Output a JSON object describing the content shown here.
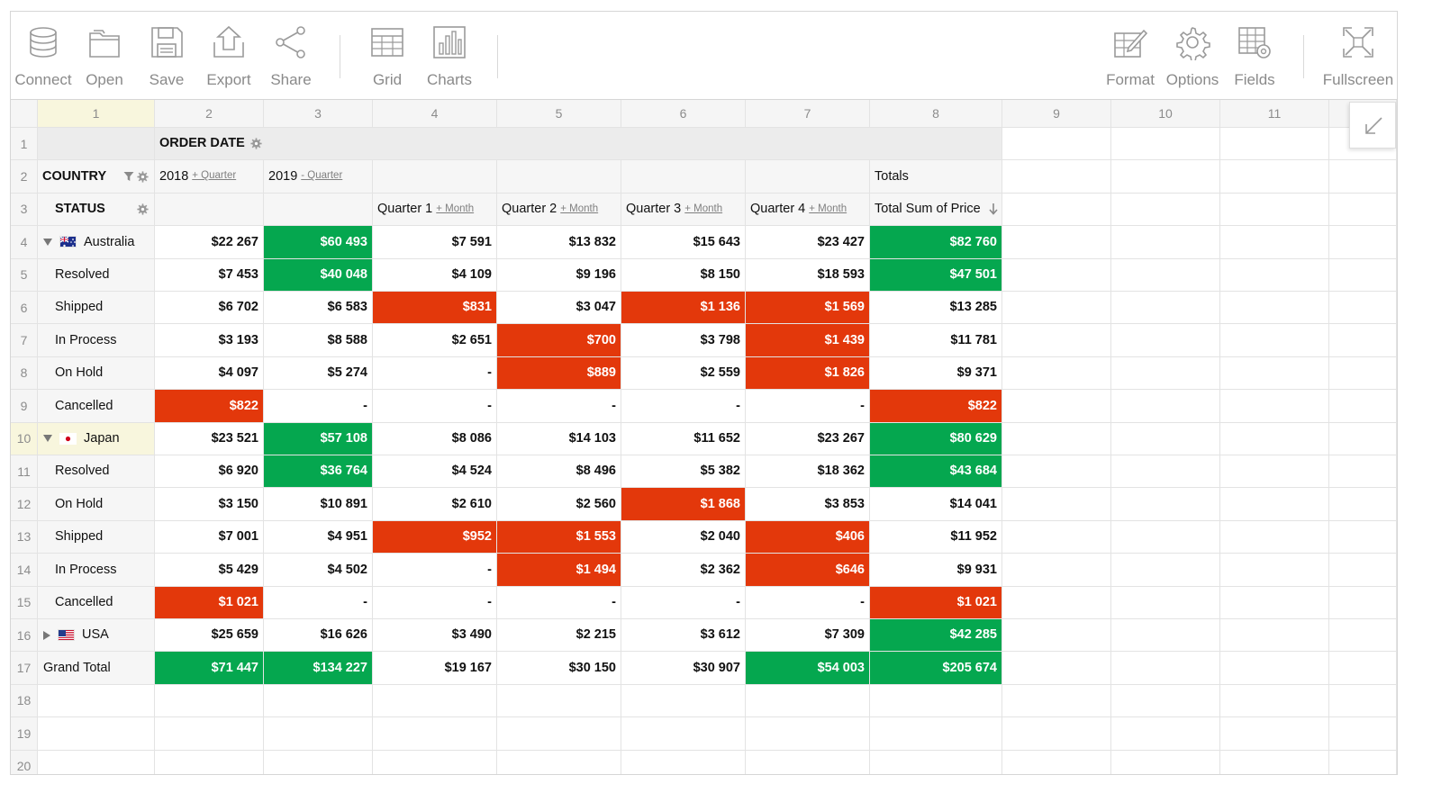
{
  "toolbar": {
    "left": [
      {
        "id": "connect",
        "label": "Connect",
        "icon": "database-icon"
      },
      {
        "id": "open",
        "label": "Open",
        "icon": "folder-icon"
      },
      {
        "id": "save",
        "label": "Save",
        "icon": "floppy-disk-icon"
      },
      {
        "id": "export",
        "label": "Export",
        "icon": "export-icon"
      },
      {
        "id": "share",
        "label": "Share",
        "icon": "share-icon"
      },
      {
        "id": "grid",
        "label": "Grid",
        "icon": "grid-icon"
      },
      {
        "id": "charts",
        "label": "Charts",
        "icon": "bar-chart-icon"
      }
    ],
    "right": [
      {
        "id": "format",
        "label": "Format",
        "icon": "format-icon"
      },
      {
        "id": "options",
        "label": "Options",
        "icon": "gear-icon"
      },
      {
        "id": "fields",
        "label": "Fields",
        "icon": "fields-icon"
      },
      {
        "id": "fullscreen",
        "label": "Fullscreen",
        "icon": "fullscreen-icon"
      }
    ]
  },
  "colors": {
    "high": "#05a74f",
    "low": "#e3380b",
    "selected": "#f8f6dd"
  },
  "column_headers": [
    "1",
    "2",
    "3",
    "4",
    "5",
    "6",
    "7",
    "8",
    "9",
    "10",
    "11"
  ],
  "row_headers": [
    "1",
    "2",
    "3",
    "4",
    "5",
    "6",
    "7",
    "8",
    "9",
    "10",
    "11",
    "12",
    "13",
    "14",
    "15",
    "16",
    "17",
    "18",
    "19",
    "20"
  ],
  "header": {
    "order_date": "ORDER DATE",
    "country": "COUNTRY",
    "status": "STATUS",
    "year_2018": "2018",
    "year_2019": "2019",
    "plus_quarter": "+ Quarter",
    "minus_quarter": "- Quarter",
    "totals": "Totals",
    "quarters": [
      {
        "label": "Quarter 1",
        "sub": "+ Month"
      },
      {
        "label": "Quarter 2",
        "sub": "+ Month"
      },
      {
        "label": "Quarter 3",
        "sub": "+ Month"
      },
      {
        "label": "Quarter 4",
        "sub": "+ Month"
      }
    ],
    "total_sum": "Total Sum of Price"
  },
  "rows": [
    {
      "label": "Australia",
      "type": "country",
      "flag": "au",
      "expanded": true,
      "cells": [
        {
          "v": "$22 267"
        },
        {
          "v": "$60 493",
          "c": "g"
        },
        {
          "v": "$7 591"
        },
        {
          "v": "$13 832"
        },
        {
          "v": "$15 643"
        },
        {
          "v": "$23 427"
        },
        {
          "v": "$82 760",
          "c": "g"
        }
      ]
    },
    {
      "label": "Resolved",
      "type": "status",
      "cells": [
        {
          "v": "$7 453"
        },
        {
          "v": "$40 048",
          "c": "g"
        },
        {
          "v": "$4 109"
        },
        {
          "v": "$9 196"
        },
        {
          "v": "$8 150"
        },
        {
          "v": "$18 593"
        },
        {
          "v": "$47 501",
          "c": "g"
        }
      ]
    },
    {
      "label": "Shipped",
      "type": "status",
      "cells": [
        {
          "v": "$6 702"
        },
        {
          "v": "$6 583"
        },
        {
          "v": "$831",
          "c": "r"
        },
        {
          "v": "$3 047"
        },
        {
          "v": "$1 136",
          "c": "r"
        },
        {
          "v": "$1 569",
          "c": "r"
        },
        {
          "v": "$13 285"
        }
      ]
    },
    {
      "label": "In Process",
      "type": "status",
      "cells": [
        {
          "v": "$3 193"
        },
        {
          "v": "$8 588"
        },
        {
          "v": "$2 651"
        },
        {
          "v": "$700",
          "c": "r"
        },
        {
          "v": "$3 798"
        },
        {
          "v": "$1 439",
          "c": "r"
        },
        {
          "v": "$11 781"
        }
      ]
    },
    {
      "label": "On Hold",
      "type": "status",
      "cells": [
        {
          "v": "$4 097"
        },
        {
          "v": "$5 274"
        },
        {
          "v": "-"
        },
        {
          "v": "$889",
          "c": "r"
        },
        {
          "v": "$2 559"
        },
        {
          "v": "$1 826",
          "c": "r"
        },
        {
          "v": "$9 371"
        }
      ]
    },
    {
      "label": "Cancelled",
      "type": "status",
      "cells": [
        {
          "v": "$822",
          "c": "r"
        },
        {
          "v": "-"
        },
        {
          "v": "-"
        },
        {
          "v": "-"
        },
        {
          "v": "-"
        },
        {
          "v": "-"
        },
        {
          "v": "$822",
          "c": "r"
        }
      ]
    },
    {
      "label": "Japan",
      "type": "country",
      "flag": "jp",
      "expanded": true,
      "selected": true,
      "cells": [
        {
          "v": "$23 521"
        },
        {
          "v": "$57 108",
          "c": "g"
        },
        {
          "v": "$8 086"
        },
        {
          "v": "$14 103"
        },
        {
          "v": "$11 652"
        },
        {
          "v": "$23 267"
        },
        {
          "v": "$80 629",
          "c": "g"
        }
      ]
    },
    {
      "label": "Resolved",
      "type": "status",
      "cells": [
        {
          "v": "$6 920"
        },
        {
          "v": "$36 764",
          "c": "g"
        },
        {
          "v": "$4 524"
        },
        {
          "v": "$8 496"
        },
        {
          "v": "$5 382"
        },
        {
          "v": "$18 362"
        },
        {
          "v": "$43 684",
          "c": "g"
        }
      ]
    },
    {
      "label": "On Hold",
      "type": "status",
      "cells": [
        {
          "v": "$3 150"
        },
        {
          "v": "$10 891"
        },
        {
          "v": "$2 610"
        },
        {
          "v": "$2 560"
        },
        {
          "v": "$1 868",
          "c": "r"
        },
        {
          "v": "$3 853"
        },
        {
          "v": "$14 041"
        }
      ]
    },
    {
      "label": "Shipped",
      "type": "status",
      "cells": [
        {
          "v": "$7 001"
        },
        {
          "v": "$4 951"
        },
        {
          "v": "$952",
          "c": "r"
        },
        {
          "v": "$1 553",
          "c": "r"
        },
        {
          "v": "$2 040"
        },
        {
          "v": "$406",
          "c": "r"
        },
        {
          "v": "$11 952"
        }
      ]
    },
    {
      "label": "In Process",
      "type": "status",
      "cells": [
        {
          "v": "$5 429"
        },
        {
          "v": "$4 502"
        },
        {
          "v": "-"
        },
        {
          "v": "$1 494",
          "c": "r"
        },
        {
          "v": "$2 362"
        },
        {
          "v": "$646",
          "c": "r"
        },
        {
          "v": "$9 931"
        }
      ]
    },
    {
      "label": "Cancelled",
      "type": "status",
      "cells": [
        {
          "v": "$1 021",
          "c": "r"
        },
        {
          "v": "-"
        },
        {
          "v": "-"
        },
        {
          "v": "-"
        },
        {
          "v": "-"
        },
        {
          "v": "-"
        },
        {
          "v": "$1 021",
          "c": "r"
        }
      ]
    },
    {
      "label": "USA",
      "type": "country",
      "flag": "us",
      "expanded": false,
      "cells": [
        {
          "v": "$25 659"
        },
        {
          "v": "$16 626"
        },
        {
          "v": "$3 490"
        },
        {
          "v": "$2 215"
        },
        {
          "v": "$3 612"
        },
        {
          "v": "$7 309"
        },
        {
          "v": "$42 285",
          "c": "g"
        }
      ]
    },
    {
      "label": "Grand Total",
      "type": "total",
      "cells": [
        {
          "v": "$71 447",
          "c": "g"
        },
        {
          "v": "$134 227",
          "c": "g"
        },
        {
          "v": "$19 167"
        },
        {
          "v": "$30 150"
        },
        {
          "v": "$30 907"
        },
        {
          "v": "$54 003",
          "c": "g"
        },
        {
          "v": "$205 674",
          "c": "g"
        }
      ]
    }
  ]
}
